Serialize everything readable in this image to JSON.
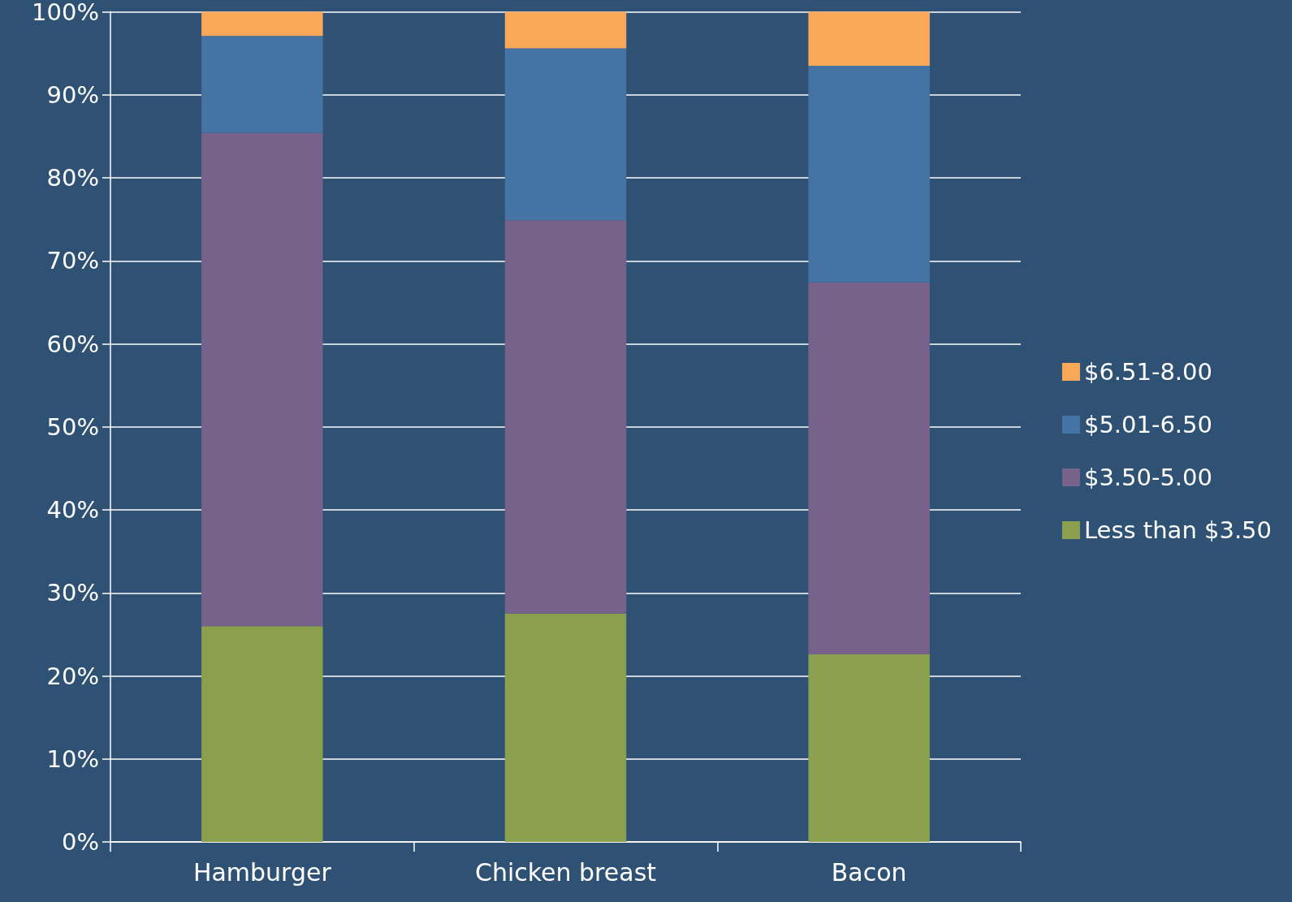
{
  "chart_data": {
    "type": "bar",
    "stacked": true,
    "categories": [
      "Hamburger",
      "Chicken breast",
      "Bacon"
    ],
    "series": [
      {
        "name": "Less than $3.50",
        "color": "#8ba04c",
        "values": [
          26.0,
          27.5,
          22.6
        ]
      },
      {
        "name": "$3.50-5.00",
        "color": "#77628c",
        "values": [
          59.4,
          47.4,
          44.8
        ]
      },
      {
        "name": "$5.01-6.50",
        "color": "#4573a4",
        "values": [
          11.7,
          20.7,
          26.1
        ]
      },
      {
        "name": "$6.51-8.00",
        "color": "#f9a85a",
        "values": [
          2.9,
          4.4,
          6.5
        ]
      }
    ],
    "ylim": [
      0,
      100
    ],
    "yticks": [
      {
        "value": 0,
        "label": "0%"
      },
      {
        "value": 10,
        "label": "10%"
      },
      {
        "value": 20,
        "label": "20%"
      },
      {
        "value": 30,
        "label": "30%"
      },
      {
        "value": 40,
        "label": "40%"
      },
      {
        "value": 50,
        "label": "50%"
      },
      {
        "value": 60,
        "label": "60%"
      },
      {
        "value": 70,
        "label": "70%"
      },
      {
        "value": 80,
        "label": "80%"
      },
      {
        "value": 90,
        "label": "90%"
      },
      {
        "value": 100,
        "label": "100%"
      }
    ],
    "grid": "y",
    "legend": "right"
  }
}
